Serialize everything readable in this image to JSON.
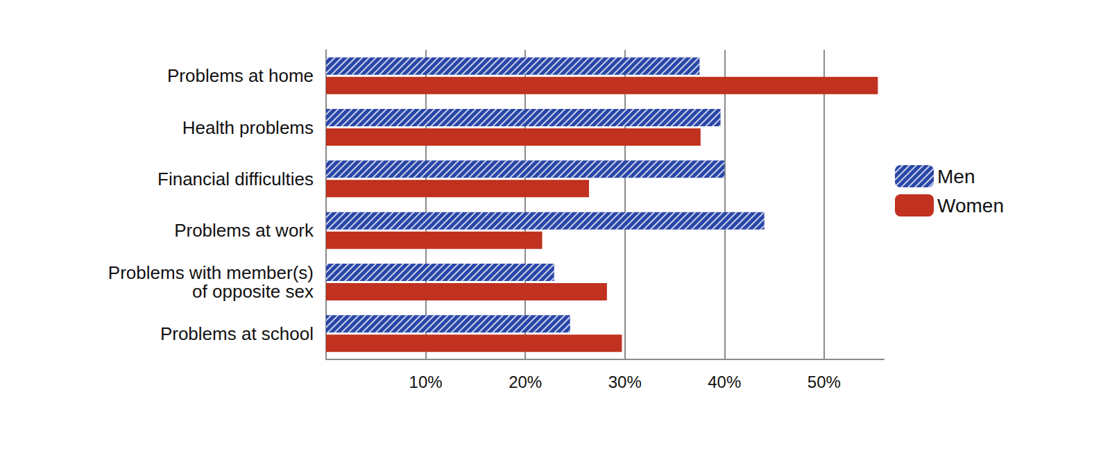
{
  "chart_data": {
    "type": "bar",
    "orientation": "horizontal",
    "categories": [
      "Problems at home",
      "Health problems",
      "Financial difficulties",
      "Problems at work",
      "Problems with member(s)\nof opposite sex",
      "Problems at school"
    ],
    "series": [
      {
        "name": "Men",
        "color": "#2946a8",
        "values": [
          37.5,
          39.6,
          40.0,
          44.0,
          22.9,
          24.5
        ]
      },
      {
        "name": "Women",
        "color": "#c0311f",
        "values": [
          55.4,
          37.6,
          26.4,
          21.7,
          28.2,
          29.7
        ]
      }
    ],
    "xlim": [
      0,
      56
    ],
    "xticks": [
      {
        "value": 10,
        "label": "10%"
      },
      {
        "value": 20,
        "label": "20%"
      },
      {
        "value": 30,
        "label": "30%"
      },
      {
        "value": 40,
        "label": "40%"
      },
      {
        "value": 50,
        "label": "50%"
      }
    ],
    "grid": true,
    "legend": "right"
  }
}
